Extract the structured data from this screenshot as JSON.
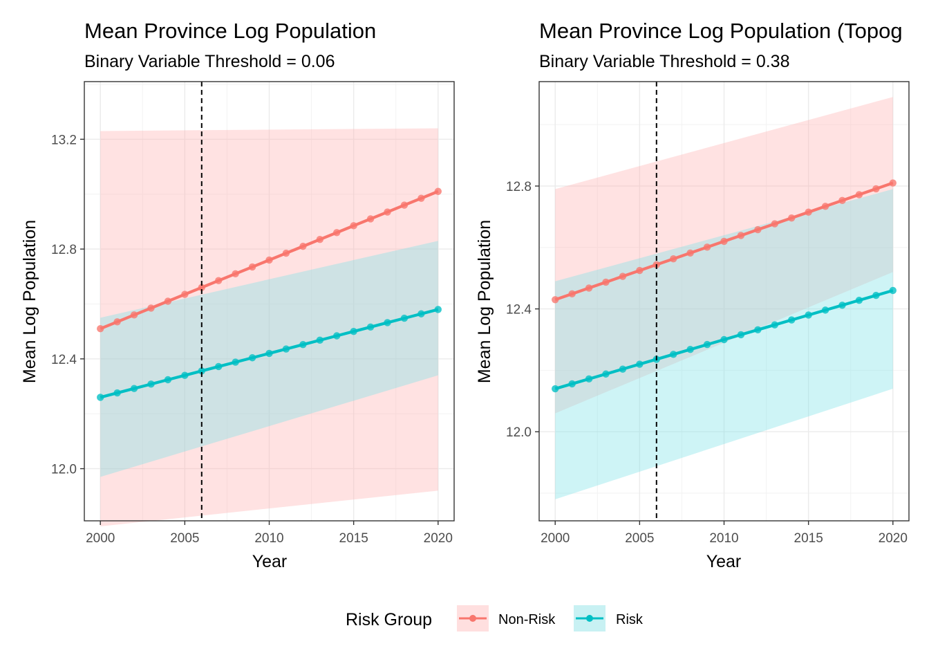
{
  "chart_data": [
    {
      "type": "line",
      "title": "Mean Province Log Population",
      "subtitle": "Binary Variable Threshold = 0.06",
      "xlabel": "Year",
      "ylabel": "Mean Log Population",
      "xlim": [
        1999.05,
        2020.95
      ],
      "ylim": [
        11.81,
        13.41
      ],
      "xticks": [
        2000,
        2005,
        2010,
        2015,
        2020
      ],
      "xtick_labels": [
        "2000",
        "2005",
        "2010",
        "2015",
        "2020"
      ],
      "yticks": [
        12.0,
        12.4,
        12.8,
        13.2
      ],
      "ytick_labels": [
        "12.0",
        "12.4",
        "12.8",
        "13.2"
      ],
      "grid": true,
      "vline": 2006,
      "x": [
        2000,
        2001,
        2002,
        2003,
        2004,
        2005,
        2006,
        2007,
        2008,
        2009,
        2010,
        2011,
        2012,
        2013,
        2014,
        2015,
        2016,
        2017,
        2018,
        2019,
        2020
      ],
      "series": [
        {
          "name": "Non-Risk",
          "color": "#F8766D",
          "line": [
            12.51,
            12.535,
            12.56,
            12.585,
            12.61,
            12.635,
            12.66,
            12.685,
            12.71,
            12.735,
            12.76,
            12.785,
            12.81,
            12.835,
            12.86,
            12.885,
            12.91,
            12.935,
            12.96,
            12.985,
            13.01
          ],
          "band_lower": [
            11.79,
            11.92
          ],
          "band_upper": [
            13.23,
            13.24
          ]
        },
        {
          "name": "Risk",
          "color": "#00BFC4",
          "line": [
            12.26,
            12.276,
            12.292,
            12.308,
            12.324,
            12.34,
            12.356,
            12.372,
            12.388,
            12.404,
            12.42,
            12.436,
            12.452,
            12.468,
            12.484,
            12.5,
            12.516,
            12.532,
            12.548,
            12.564,
            12.58
          ],
          "band_lower": [
            11.97,
            12.34
          ],
          "band_upper": [
            12.55,
            12.83
          ]
        }
      ]
    },
    {
      "type": "line",
      "title": "Mean Province Log Population (Topog",
      "subtitle": "Binary Variable Threshold = 0.38",
      "xlabel": "Year",
      "ylabel": "Mean Log Population",
      "xlim": [
        1999.05,
        2020.95
      ],
      "ylim": [
        11.71,
        13.14
      ],
      "xticks": [
        2000,
        2005,
        2010,
        2015,
        2020
      ],
      "xtick_labels": [
        "2000",
        "2005",
        "2010",
        "2015",
        "2020"
      ],
      "yticks": [
        12.0,
        12.4,
        12.8
      ],
      "ytick_labels": [
        "12.0",
        "12.4",
        "12.8"
      ],
      "grid": true,
      "vline": 2006,
      "x": [
        2000,
        2001,
        2002,
        2003,
        2004,
        2005,
        2006,
        2007,
        2008,
        2009,
        2010,
        2011,
        2012,
        2013,
        2014,
        2015,
        2016,
        2017,
        2018,
        2019,
        2020
      ],
      "series": [
        {
          "name": "Non-Risk",
          "color": "#F8766D",
          "line": [
            12.43,
            12.449,
            12.468,
            12.487,
            12.506,
            12.525,
            12.544,
            12.563,
            12.582,
            12.601,
            12.62,
            12.639,
            12.658,
            12.677,
            12.696,
            12.715,
            12.734,
            12.753,
            12.772,
            12.791,
            12.81
          ],
          "band_lower": [
            12.06,
            12.52
          ],
          "band_upper": [
            12.79,
            13.09
          ]
        },
        {
          "name": "Risk",
          "color": "#00BFC4",
          "line": [
            12.14,
            12.156,
            12.172,
            12.188,
            12.204,
            12.22,
            12.236,
            12.252,
            12.268,
            12.284,
            12.3,
            12.316,
            12.332,
            12.348,
            12.364,
            12.38,
            12.396,
            12.412,
            12.428,
            12.444,
            12.46
          ],
          "band_lower": [
            11.78,
            12.14
          ],
          "band_upper": [
            12.49,
            12.79
          ]
        }
      ]
    }
  ],
  "legend": {
    "title": "Risk Group",
    "position": "bottom",
    "items": [
      {
        "label": "Non-Risk",
        "color": "#F8766D",
        "fill": "#FFDFDF"
      },
      {
        "label": "Risk",
        "color": "#00BFC4",
        "fill": "#C8F1F3"
      }
    ]
  }
}
